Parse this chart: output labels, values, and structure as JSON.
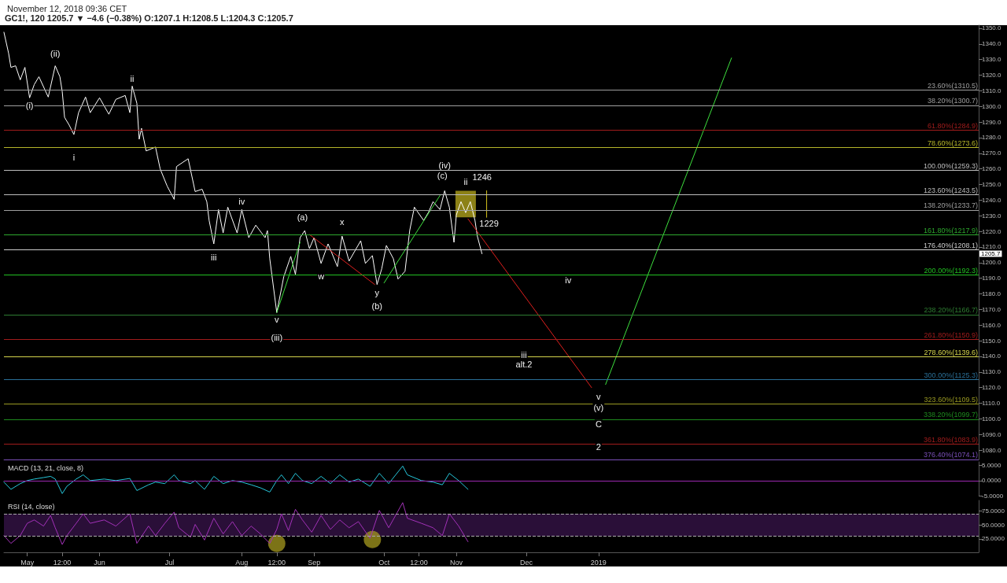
{
  "chart_data": [
    {
      "type": "line",
      "title": "GC1!, 120 1205.7 ▼ −4.6 (−0.38%) O:1207.1 H:1208.5 L:1204.3 C:1205.7",
      "subtitle": "November 12, 2018 09:36 CET",
      "marker": "none",
      "tick_labels": "y",
      "xlim": [
        "2018-04-21",
        "2019-06-13"
      ],
      "ylim": [
        1074,
        1352
      ],
      "yticks": [
        {
          "value": 1080,
          "label": "1080.0"
        },
        {
          "value": 1090,
          "label": "1090.0"
        },
        {
          "value": 1100,
          "label": "1100.0"
        },
        {
          "value": 1110,
          "label": "1110.0"
        },
        {
          "value": 1120,
          "label": "1120.0"
        },
        {
          "value": 1130,
          "label": "1130.0"
        },
        {
          "value": 1140,
          "label": "1140.0"
        },
        {
          "value": 1150,
          "label": "1150.0"
        },
        {
          "value": 1160,
          "label": "1160.0"
        },
        {
          "value": 1170,
          "label": "1170.0"
        },
        {
          "value": 1180,
          "label": "1180.0"
        },
        {
          "value": 1190,
          "label": "1190.0"
        },
        {
          "value": 1200,
          "label": "1200.0"
        },
        {
          "value": 1210,
          "label": "1210.0"
        },
        {
          "value": 1220,
          "label": "1220.0"
        },
        {
          "value": 1230,
          "label": "1230.0"
        },
        {
          "value": 1240,
          "label": "1240.0"
        },
        {
          "value": 1250,
          "label": "1250.0"
        },
        {
          "value": 1260,
          "label": "1260.0"
        },
        {
          "value": 1270,
          "label": "1270.0"
        },
        {
          "value": 1280,
          "label": "1280.0"
        },
        {
          "value": 1290,
          "label": "1290.0"
        },
        {
          "value": 1300,
          "label": "1300.0"
        },
        {
          "value": 1310,
          "label": "1310.0"
        },
        {
          "value": 1320,
          "label": "1320.0"
        },
        {
          "value": 1330,
          "label": "1330.0"
        },
        {
          "value": 1340,
          "label": "1340.0"
        },
        {
          "value": 1350,
          "label": "1350.0"
        }
      ],
      "series": [
        {
          "color": "#ffffff",
          "x": [
            "2018-04-21",
            "2018-04-23",
            "2018-04-24",
            "2018-04-26",
            "2018-04-28",
            "2018-04-30",
            "2018-05-02",
            "2018-05-04",
            "2018-05-06",
            "2018-05-10",
            "2018-05-13",
            "2018-05-15",
            "2018-05-16",
            "2018-05-17",
            "2018-05-19",
            "2018-05-21",
            "2018-05-23",
            "2018-05-26",
            "2018-05-28",
            "2018-06-01",
            "2018-06-05",
            "2018-06-08",
            "2018-06-12",
            "2018-06-14",
            "2018-06-15",
            "2018-06-17",
            "2018-06-18",
            "2018-06-19",
            "2018-06-21",
            "2018-06-25",
            "2018-06-27",
            "2018-06-30",
            "2018-07-03",
            "2018-07-04",
            "2018-07-09",
            "2018-07-12",
            "2018-07-15",
            "2018-07-17",
            "2018-07-18",
            "2018-07-20",
            "2018-07-22",
            "2018-07-24",
            "2018-07-26",
            "2018-07-30",
            "2018-08-01",
            "2018-08-04",
            "2018-08-07",
            "2018-08-11",
            "2018-08-12",
            "2018-08-13",
            "2018-08-16",
            "2018-08-19",
            "2018-08-22",
            "2018-08-24",
            "2018-08-26",
            "2018-08-28",
            "2018-08-30",
            "2018-09-01",
            "2018-09-04",
            "2018-09-07",
            "2018-09-11",
            "2018-09-13",
            "2018-09-16",
            "2018-09-21",
            "2018-09-23",
            "2018-09-26",
            "2018-09-28",
            "2018-09-30",
            "2018-10-02",
            "2018-10-05",
            "2018-10-07",
            "2018-10-10",
            "2018-10-12",
            "2018-10-14",
            "2018-10-18",
            "2018-10-20",
            "2018-10-22",
            "2018-10-25",
            "2018-10-27",
            "2018-10-29",
            "2018-10-31",
            "2018-11-01",
            "2018-11-03",
            "2018-11-05",
            "2018-11-07",
            "2018-11-09",
            "2018-11-10",
            "2018-11-12"
          ],
          "values": [
            1347.5,
            1334,
            1325,
            1326,
            1317,
            1325,
            1305.5,
            1314,
            1319,
            1306,
            1326,
            1319,
            1309.5,
            1293,
            1288,
            1282,
            1296,
            1306,
            1296,
            1305.5,
            1295,
            1304.5,
            1307,
            1296,
            1313,
            1302,
            1279,
            1286,
            1271.5,
            1274,
            1260,
            1249,
            1240.5,
            1261.5,
            1266.5,
            1245.5,
            1247,
            1239,
            1227,
            1212,
            1234,
            1219,
            1235.5,
            1219,
            1234,
            1216,
            1224,
            1216,
            1220.5,
            1202.5,
            1168,
            1191,
            1204,
            1192.5,
            1216,
            1220.5,
            1209,
            1216,
            1199.5,
            1212,
            1197.5,
            1217,
            1201,
            1214,
            1199.5,
            1204.5,
            1186,
            1196,
            1211,
            1202.5,
            1189.5,
            1194.5,
            1220.5,
            1235.5,
            1227,
            1232,
            1239,
            1234,
            1246,
            1235.5,
            1213,
            1230.5,
            1239,
            1232,
            1239,
            1227,
            1217,
            1205.7
          ]
        },
        {
          "type": "bar",
          "color": "#c8b820",
          "x": [
            "2018-11-05"
          ],
          "base": [
            1229
          ],
          "values": [
            17
          ]
        },
        {
          "color": "#d4c21c",
          "x": [
            "2018-11-14",
            "2018-11-14"
          ],
          "values": [
            1246,
            1229
          ]
        },
        {
          "color": "#3ee03e",
          "x": [
            "2018-08-16",
            "2018-08-26"
          ],
          "values": [
            1168,
            1213
          ]
        },
        {
          "color": "#e0201e",
          "x": [
            "2018-08-30",
            "2018-09-27"
          ],
          "values": [
            1218,
            1186
          ]
        },
        {
          "color": "#3ee03e",
          "x": [
            "2018-10-01",
            "2018-10-25"
          ],
          "values": [
            1187,
            1243
          ]
        },
        {
          "color": "#e0201e",
          "x": [
            "2018-11-06",
            "2018-12-29"
          ],
          "values": [
            1228,
            1120
          ]
        },
        {
          "color": "#3ee03e",
          "x": [
            "2019-01-04",
            "2019-02-27"
          ],
          "values": [
            1122,
            1331
          ]
        }
      ],
      "ref_lines": [
        {
          "axis": "y",
          "value": 1310.5,
          "label": "23.60%(1310.5)",
          "color": "#9e9e9e"
        },
        {
          "axis": "y",
          "value": 1300.7,
          "label": "38.20%(1300.7)",
          "color": "#9e9e9e"
        },
        {
          "axis": "y",
          "value": 1284.9,
          "label": "61.80%(1284.9)",
          "color": "#a11c1c"
        },
        {
          "axis": "y",
          "value": 1273.6,
          "label": "78.60%(1273.6)",
          "color": "#b5b52a"
        },
        {
          "axis": "y",
          "value": 1259.3,
          "label": "100.00%(1259.3)",
          "color": "#bdbdbd"
        },
        {
          "axis": "y",
          "value": 1243.5,
          "label": "123.60%(1243.5)",
          "color": "#bdbdbd"
        },
        {
          "axis": "y",
          "value": 1233.7,
          "label": "138.20%(1233.7)",
          "color": "#9e9e9e"
        },
        {
          "axis": "y",
          "value": 1217.9,
          "label": "161.80%(1217.9)",
          "color": "#2ea82e"
        },
        {
          "axis": "y",
          "value": 1208.1,
          "label": "176.40%(1208.1)",
          "color": "#cccccc"
        },
        {
          "axis": "y",
          "value": 1192.3,
          "label": "200.00%(1192.3)",
          "color": "#22c022"
        },
        {
          "axis": "y",
          "value": 1166.7,
          "label": "238.20%(1166.7)",
          "color": "#2e7d32"
        },
        {
          "axis": "y",
          "value": 1150.9,
          "label": "261.80%(1150.9)",
          "color": "#a11c1c"
        },
        {
          "axis": "y",
          "value": 1139.6,
          "label": "278.60%(1139.6)",
          "color": "#d4d44c"
        },
        {
          "axis": "y",
          "value": 1125.3,
          "label": "300.00%(1125.3)",
          "color": "#2a6f97"
        },
        {
          "axis": "y",
          "value": 1109.5,
          "label": "323.60%(1109.5)",
          "color": "#9a9a22"
        },
        {
          "axis": "y",
          "value": 1099.7,
          "label": "338.20%(1099.7)",
          "color": "#1e8a1e"
        },
        {
          "axis": "y",
          "value": 1083.9,
          "label": "361.80%(1083.9)",
          "color": "#a11c1c"
        },
        {
          "axis": "y",
          "value": 1074.1,
          "label": "376.40%(1074.1)",
          "color": "#7a4fb8"
        }
      ],
      "annotations": [
        {
          "text": "(i)",
          "x": "2018-05-02",
          "y": 1300.6
        },
        {
          "text": "(ii)",
          "x": "2018-05-13",
          "y": 1334
        },
        {
          "text": "i",
          "x": "2018-05-21",
          "y": 1267.5
        },
        {
          "text": "ii",
          "x": "2018-06-15",
          "y": 1318
        },
        {
          "text": "iii",
          "x": "2018-07-20",
          "y": 1203.5
        },
        {
          "text": "iv",
          "x": "2018-08-01",
          "y": 1239
        },
        {
          "text": "v",
          "x": "2018-08-16",
          "y": 1163.5
        },
        {
          "text": "(iii)",
          "x": "2018-08-16",
          "y": 1152
        },
        {
          "text": "(a)",
          "x": "2018-08-27",
          "y": 1229
        },
        {
          "text": "w",
          "x": "2018-09-04",
          "y": 1191.5
        },
        {
          "text": "x",
          "x": "2018-09-13",
          "y": 1226
        },
        {
          "text": "y",
          "x": "2018-09-28",
          "y": 1181
        },
        {
          "text": "(b)",
          "x": "2018-09-28",
          "y": 1172
        },
        {
          "text": "(iv)",
          "x": "2018-10-27",
          "y": 1262.6
        },
        {
          "text": "(c)",
          "x": "2018-10-26",
          "y": 1255.7
        },
        {
          "text": "ii",
          "x": "2018-11-05",
          "y": 1251.8
        },
        {
          "text": "1246",
          "x": "2018-11-12",
          "y": 1255
        },
        {
          "text": "1229",
          "x": "2018-11-15",
          "y": 1225
        },
        {
          "text": "iii",
          "x": "2018-11-30",
          "y": 1141
        },
        {
          "text": "alt.2",
          "x": "2018-11-30",
          "y": 1134.8
        },
        {
          "text": "iv",
          "x": "2018-12-19",
          "y": 1189
        },
        {
          "text": "v",
          "x": "2019-01-01",
          "y": 1114.5
        },
        {
          "text": "(v)",
          "x": "2019-01-01",
          "y": 1107
        },
        {
          "text": "C",
          "x": "2019-01-01",
          "y": 1096.8
        },
        {
          "text": "2",
          "x": "2019-01-01",
          "y": 1082
        },
        "1205.7"
      ]
    },
    {
      "type": "line",
      "title": "MACD (13, 21, close, 8)",
      "marker": "none",
      "tick_labels": "y",
      "xlim": [
        "2018-04-21",
        "2019-06-13"
      ],
      "ylim": [
        -5,
        6.2
      ],
      "yticks": [
        {
          "value": -5,
          "label": "-5.0000"
        },
        {
          "value": 0,
          "label": "0.0000"
        },
        {
          "value": 5,
          "label": "5.0000"
        }
      ],
      "x": [
        "2018-04-21",
        "2018-04-24",
        "2018-04-28",
        "2018-05-01",
        "2018-05-04",
        "2018-05-08",
        "2018-05-11",
        "2018-05-13",
        "2018-05-16",
        "2018-05-18",
        "2018-05-22",
        "2018-05-25",
        "2018-05-28",
        "2018-06-03",
        "2018-06-08",
        "2018-06-14",
        "2018-06-17",
        "2018-06-22",
        "2018-06-25",
        "2018-06-29",
        "2018-07-03",
        "2018-07-05",
        "2018-07-10",
        "2018-07-12",
        "2018-07-16",
        "2018-07-20",
        "2018-07-24",
        "2018-07-28",
        "2018-08-01",
        "2018-08-05",
        "2018-08-09",
        "2018-08-13",
        "2018-08-16",
        "2018-08-18",
        "2018-08-21",
        "2018-08-24",
        "2018-08-27",
        "2018-08-31",
        "2018-09-04",
        "2018-09-08",
        "2018-09-12",
        "2018-09-16",
        "2018-09-20",
        "2018-09-25",
        "2018-09-29",
        "2018-10-03",
        "2018-10-09",
        "2018-10-11",
        "2018-10-17",
        "2018-10-22",
        "2018-10-26",
        "2018-10-29",
        "2018-11-02",
        "2018-11-06"
      ],
      "series": [
        {
          "color": "#26c6da",
          "values": [
            -0.5,
            -2.9,
            -1,
            0,
            0.5,
            1,
            1.4,
            0.5,
            -4.3,
            -1.9,
            0.5,
            1.9,
            0,
            0.5,
            0,
            0.7,
            -3.3,
            -1.4,
            -0.5,
            -1,
            1.9,
            0,
            -1,
            0,
            -2.9,
            1.4,
            -1,
            0,
            -0.5,
            -1.4,
            -2.4,
            -3.8,
            0,
            1.9,
            -1,
            2.4,
            0,
            -1,
            1.4,
            -1,
            1.9,
            -0.5,
            0.5,
            -1.9,
            2.4,
            -1,
            4.8,
            1.9,
            0,
            -0.5,
            -1.4,
            2.4,
            0,
            -2.9
          ]
        }
      ],
      "ref_lines": [
        {
          "axis": "y",
          "value": 0,
          "color": "#9c27b0"
        }
      ]
    },
    {
      "type": "line",
      "title": "RSI (14, close)",
      "marker": "none",
      "xlim": [
        "2018-04-21",
        "2019-06-13"
      ],
      "ylim": [
        1,
        94
      ],
      "xticks": [
        {
          "value": "2018-05-01",
          "label": "May"
        },
        {
          "value": "2018-05-16",
          "label": "12:00"
        },
        {
          "value": "2018-06-01",
          "label": "Jun"
        },
        {
          "value": "2018-07-01",
          "label": "Jul"
        },
        {
          "value": "2018-08-01",
          "label": "Aug"
        },
        {
          "value": "2018-08-16",
          "label": "12:00"
        },
        {
          "value": "2018-09-01",
          "label": "Sep"
        },
        {
          "value": "2018-10-01",
          "label": "Oct"
        },
        {
          "value": "2018-10-16",
          "label": "12:00"
        },
        {
          "value": "2018-11-01",
          "label": "Nov"
        },
        {
          "value": "2018-12-01",
          "label": "Dec"
        },
        {
          "value": "2019-01-01",
          "label": "2019"
        }
      ],
      "yticks": [
        {
          "value": 25,
          "label": "25.0000"
        },
        {
          "value": 50,
          "label": "50.0000"
        },
        {
          "value": 75,
          "label": "75.0000"
        }
      ],
      "x": [
        "2018-04-21",
        "2018-04-24",
        "2018-04-28",
        "2018-05-01",
        "2018-05-04",
        "2018-05-08",
        "2018-05-11",
        "2018-05-13",
        "2018-05-16",
        "2018-05-18",
        "2018-05-22",
        "2018-05-25",
        "2018-05-28",
        "2018-06-03",
        "2018-06-08",
        "2018-06-14",
        "2018-06-17",
        "2018-06-22",
        "2018-06-25",
        "2018-06-29",
        "2018-07-03",
        "2018-07-05",
        "2018-07-10",
        "2018-07-12",
        "2018-07-16",
        "2018-07-20",
        "2018-07-24",
        "2018-07-28",
        "2018-08-01",
        "2018-08-05",
        "2018-08-09",
        "2018-08-13",
        "2018-08-16",
        "2018-08-18",
        "2018-08-21",
        "2018-08-24",
        "2018-08-27",
        "2018-08-31",
        "2018-09-04",
        "2018-09-08",
        "2018-09-12",
        "2018-09-16",
        "2018-09-20",
        "2018-09-25",
        "2018-09-29",
        "2018-10-03",
        "2018-10-09",
        "2018-10-11",
        "2018-10-17",
        "2018-10-22",
        "2018-10-26",
        "2018-10-29",
        "2018-11-02",
        "2018-11-06"
      ],
      "series": [
        {
          "color": "#a232b8",
          "values": [
            31,
            17,
            31,
            53,
            59,
            48,
            67,
            45,
            15,
            31,
            53,
            70,
            53,
            59,
            48,
            70,
            17,
            48,
            31,
            53,
            73,
            45,
            28,
            51,
            23,
            62,
            34,
            56,
            31,
            48,
            34,
            17,
            42,
            70,
            40,
            78,
            59,
            37,
            67,
            42,
            59,
            45,
            56,
            26,
            76,
            45,
            90,
            62,
            53,
            45,
            31,
            70,
            48,
            20
          ]
        },
        {
          "type": "scatter",
          "marker": "circle",
          "color": "#a59a1f",
          "x": [
            "2018-08-16",
            "2018-09-26"
          ],
          "values": [
            17,
            24
          ]
        }
      ],
      "ref_lines": [
        {
          "axis": "y",
          "value": 70,
          "color": "#aaaaaa",
          "line_style": "dashed"
        },
        {
          "axis": "y",
          "value": 30,
          "color": "#aaaaaa",
          "line_style": "dashed"
        }
      ],
      "bands": [
        {
          "axis": "y",
          "from": 30,
          "to": 70,
          "color": "#2a0f38"
        }
      ]
    }
  ]
}
